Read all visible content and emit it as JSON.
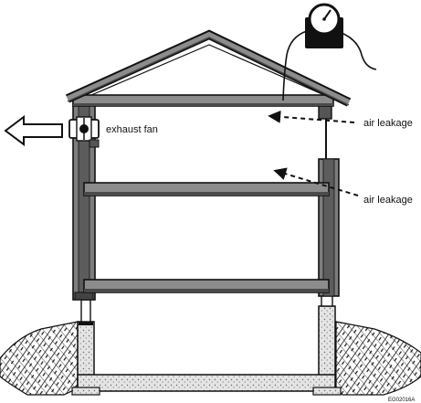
{
  "labels": {
    "exhaust_fan": "exhaust fan",
    "air_leakage_upper": "air leakage",
    "air_leakage_lower": "air leakage",
    "figure_code": "EG02016A"
  },
  "colors": {
    "ink": "#1a1a1a",
    "wall_fill": "#7d7d7d",
    "beam_fill": "#8c8c8c",
    "beam_shadow": "#4a4a4a",
    "concrete_fill": "#dcdcdc",
    "soil_fill": "#ffffff",
    "background": "#ffffff"
  },
  "icons": {
    "gauge": "manometer-gauge-icon",
    "arrow": "airflow-arrow-icon",
    "fan": "exhaust-fan-icon"
  }
}
